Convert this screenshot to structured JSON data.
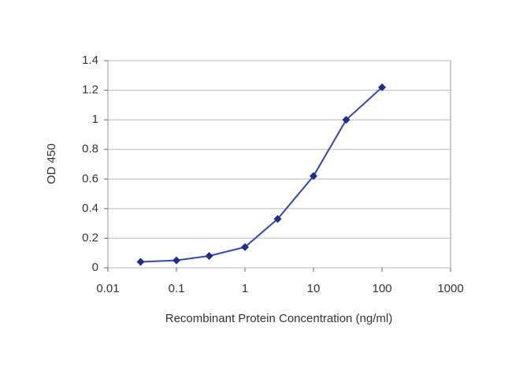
{
  "chart_data": {
    "type": "line",
    "x_label": "Recombinant Protein Concentration (ng/ml)",
    "y_label": "OD 450",
    "x": [
      0.03,
      0.1,
      0.3,
      1,
      3,
      10,
      30,
      100
    ],
    "values": [
      0.04,
      0.05,
      0.08,
      0.14,
      0.33,
      0.62,
      1.0,
      1.22
    ],
    "color": "#3347a8",
    "marker_color": "#1f2e8c",
    "x_log": true,
    "xlim": [
      0.01,
      1000
    ],
    "xticks": [
      0.01,
      0.1,
      1,
      10,
      100,
      1000
    ],
    "ylim": [
      0,
      1.4
    ],
    "yticks": [
      0,
      0.2,
      0.4,
      0.6,
      0.8,
      1,
      1.2,
      1.4
    ],
    "grid": true
  }
}
